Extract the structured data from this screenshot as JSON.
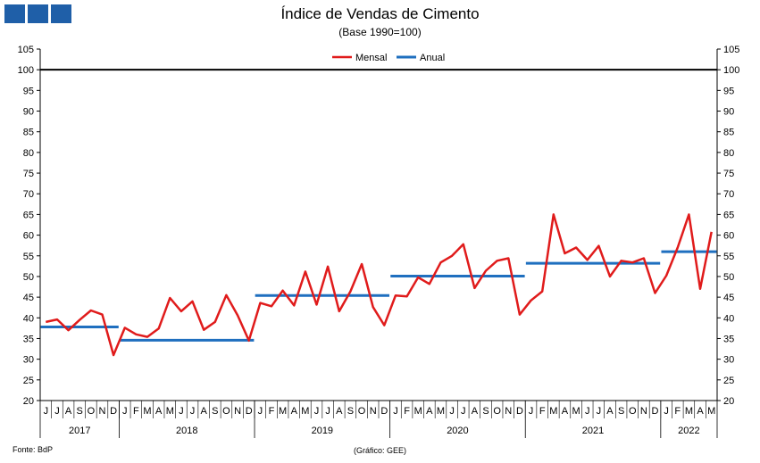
{
  "header": {
    "title": "Índice de Vendas de Cimento",
    "subtitle": "(Base 1990=100)"
  },
  "footer": {
    "source": "Fonte: BdP",
    "credit": "(Gráfico: GEE)"
  },
  "colors": {
    "mensal": "#e01b1b",
    "anual": "#1f6fbf",
    "reference": "#000000",
    "logo": "#1f5fa8"
  },
  "chart_data": {
    "type": "line",
    "title": "Índice de Vendas de Cimento",
    "subtitle": "(Base 1990=100)",
    "ylim": [
      20,
      105
    ],
    "yticks": [
      20,
      25,
      30,
      35,
      40,
      45,
      50,
      55,
      60,
      65,
      70,
      75,
      80,
      85,
      90,
      95,
      100,
      105
    ],
    "y_axis_both_sides": true,
    "grid": false,
    "legend_position": "top-center",
    "reference_line": 100,
    "month_labels": [
      "J",
      "J",
      "A",
      "S",
      "O",
      "N",
      "D",
      "J",
      "F",
      "M",
      "A",
      "M",
      "J",
      "J",
      "A",
      "S",
      "O",
      "N",
      "D",
      "J",
      "F",
      "M",
      "A",
      "M",
      "J",
      "J",
      "A",
      "S",
      "O",
      "N",
      "D",
      "J",
      "F",
      "M",
      "A",
      "M",
      "J",
      "J",
      "A",
      "S",
      "O",
      "N",
      "D",
      "J",
      "F",
      "M",
      "A",
      "M",
      "J",
      "J",
      "A",
      "S",
      "O",
      "N",
      "D",
      "J",
      "F",
      "M",
      "A",
      "M"
    ],
    "years": [
      {
        "label": "2017",
        "months": 7
      },
      {
        "label": "2018",
        "months": 12
      },
      {
        "label": "2019",
        "months": 12
      },
      {
        "label": "2020",
        "months": 12
      },
      {
        "label": "2021",
        "months": 12
      },
      {
        "label": "2022",
        "months": 5
      }
    ],
    "series": [
      {
        "name": "Mensal",
        "values": [
          39,
          39.6,
          37,
          39.5,
          41.8,
          40.8,
          31,
          37.6,
          36,
          35.4,
          37.4,
          44.8,
          41.6,
          44,
          37.1,
          39,
          45.5,
          40.6,
          34.5,
          43.6,
          42.8,
          46.6,
          43,
          51.2,
          43.2,
          52.4,
          41.6,
          46.4,
          53,
          42.6,
          38.2,
          45.4,
          45.2,
          49.8,
          48.2,
          53.4,
          55,
          57.8,
          47.2,
          51.4,
          53.8,
          54.4,
          40.8,
          44.2,
          46.4,
          65,
          55.6,
          57,
          54,
          57.4,
          50,
          53.8,
          53.4,
          54.4,
          46,
          50.2,
          57,
          65,
          47,
          60.8
        ]
      },
      {
        "name": "Anual",
        "segments": [
          {
            "year": "2017",
            "value": 37.8
          },
          {
            "year": "2018",
            "value": 34.6
          },
          {
            "year": "2019",
            "value": 45.4
          },
          {
            "year": "2020",
            "value": 50.1
          },
          {
            "year": "2021",
            "value": 53.2
          },
          {
            "year": "2022",
            "value": 56
          }
        ]
      }
    ]
  }
}
